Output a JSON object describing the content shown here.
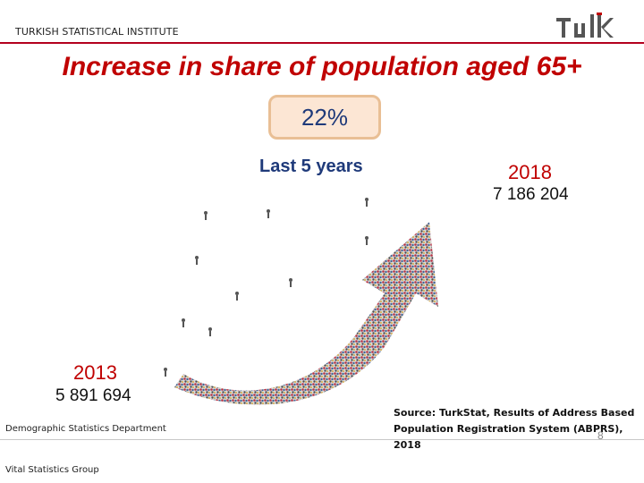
{
  "header": {
    "org": "TURKISH STATISTICAL INSTITUTE",
    "logo_text": "TÜİK"
  },
  "title": "Increase in share of population aged 65+",
  "increase": {
    "percent": "22%",
    "period": "Last 5 years"
  },
  "end": {
    "year": "2018",
    "value": "7 186 204"
  },
  "start": {
    "year": "2013",
    "value": "5 891 694"
  },
  "source": "Source: TurkStat, Results of Address Based Population Registration System (ABPRS), 2018",
  "footer": {
    "department": "Demographic Statistics Department",
    "group": "Vital Statistics Group",
    "page": "8"
  },
  "colors": {
    "accent": "#c00000",
    "navy": "#1f3a7a",
    "box_fill": "#fce6d4",
    "box_border": "#e9bf95"
  },
  "icons": {
    "logo": "tuik-logo-icon",
    "crowd": "crowd-arrow-image"
  }
}
